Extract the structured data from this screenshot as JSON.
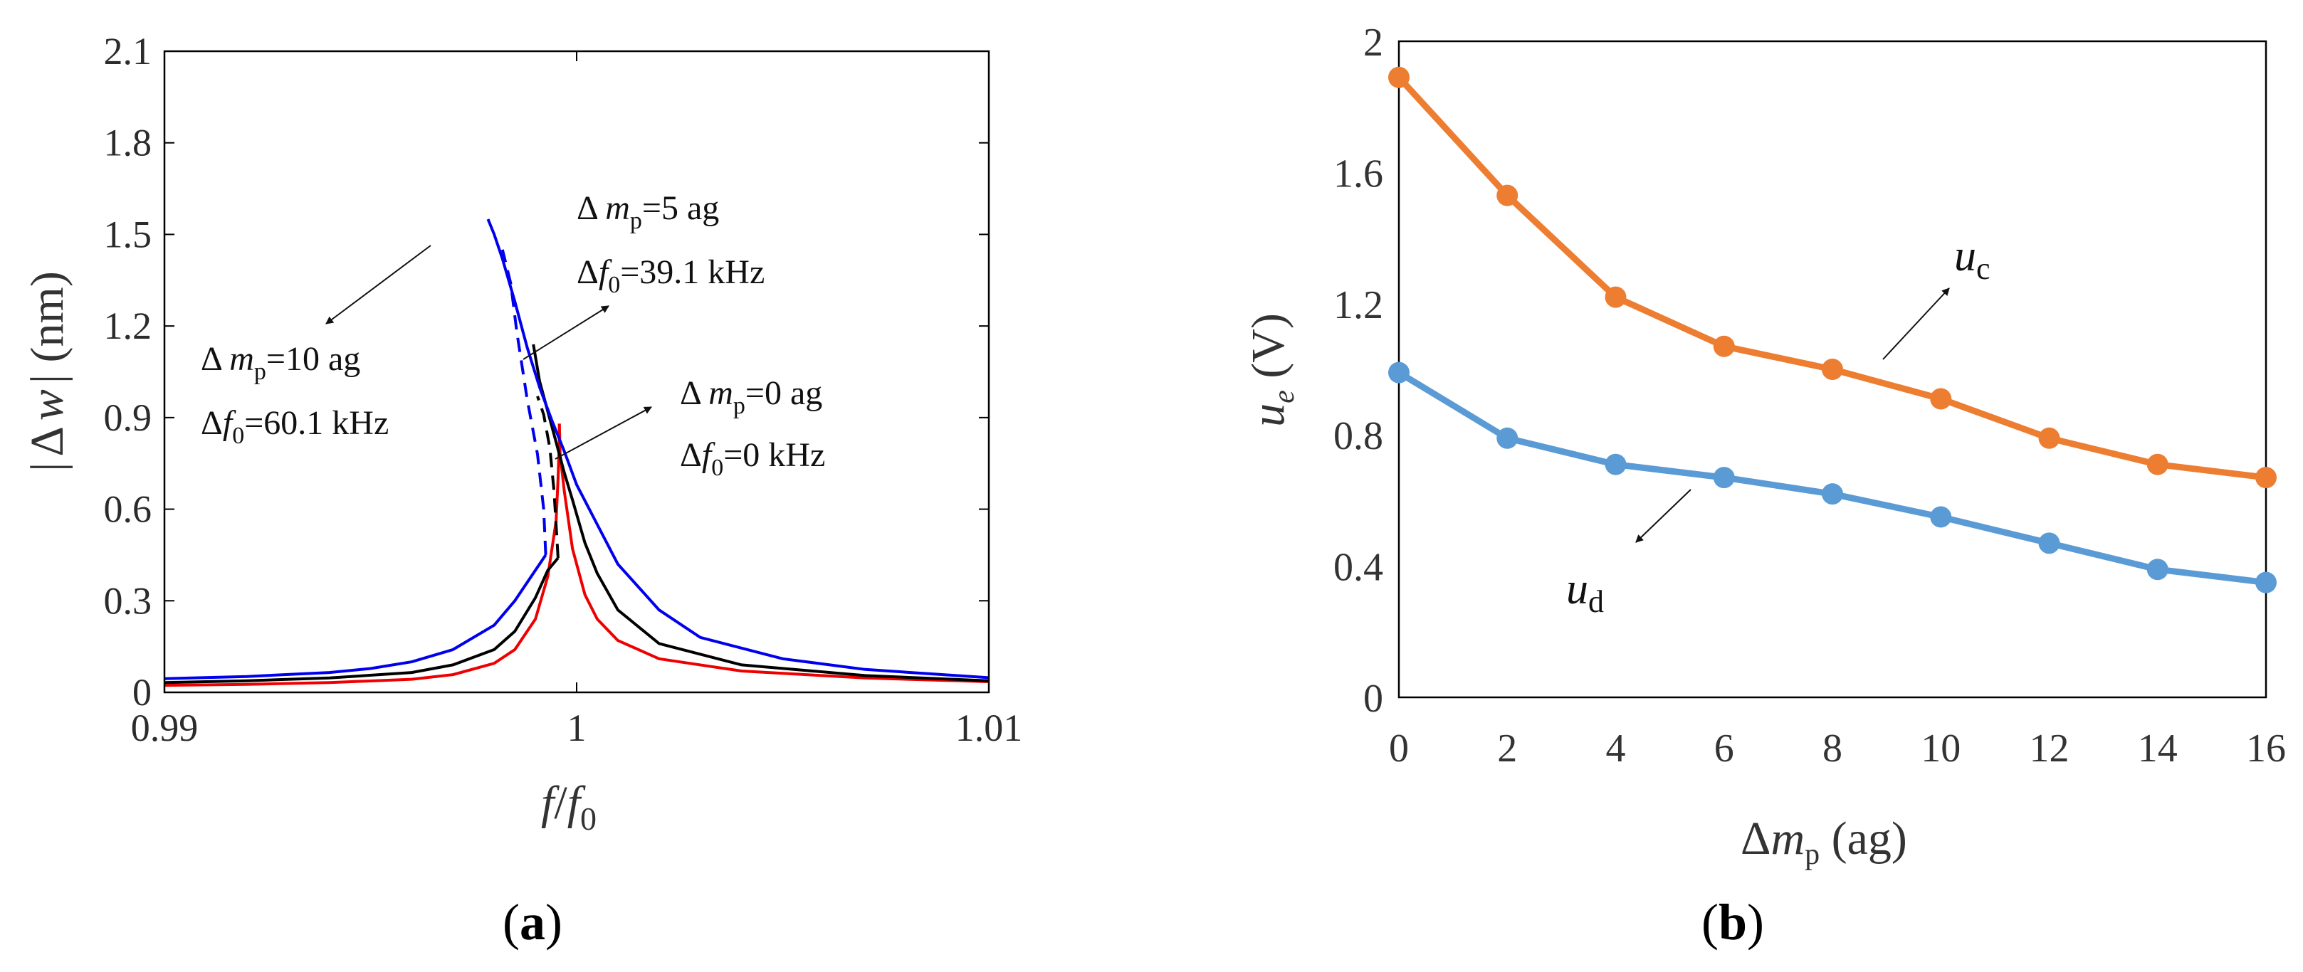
{
  "panel_labels": {
    "a_open": "(",
    "a_letter": "a",
    "a_close": ")",
    "b_open": "(",
    "b_letter": "b",
    "b_close": ")"
  },
  "chart_data": [
    {
      "type": "line",
      "panel": "a",
      "xlabel": "f/f0",
      "ylabel": "|Δw| (nm)",
      "xlim": [
        0.99,
        1.01
      ],
      "ylim": [
        0,
        2.1
      ],
      "x_ticks": [
        "0.99",
        "1",
        "1.01"
      ],
      "y_ticks": [
        "0",
        "0.3",
        "0.6",
        "0.9",
        "1.2",
        "1.5",
        "1.8",
        "2.1"
      ],
      "colors": {
        "blue": "#0000ee",
        "black": "#000000",
        "red": "#ee0000"
      },
      "series": [
        {
          "name": "Δmp=0 ag",
          "color": "red",
          "stable": [
            [
              0.99,
              0.023
            ],
            [
              0.992,
              0.026
            ],
            [
              0.994,
              0.032
            ],
            [
              0.996,
              0.043
            ],
            [
              0.997,
              0.058
            ],
            [
              0.998,
              0.095
            ],
            [
              0.9985,
              0.14
            ],
            [
              0.999,
              0.24
            ],
            [
              0.9993,
              0.38
            ],
            [
              0.9995,
              0.56
            ],
            [
              0.99955,
              0.7
            ],
            [
              0.99958,
              0.82
            ],
            [
              0.99958,
              0.88
            ]
          ],
          "unstable": [],
          "upper": [
            [
              0.99958,
              0.88
            ],
            [
              0.9996,
              0.78
            ],
            [
              0.9997,
              0.66
            ],
            [
              0.9999,
              0.47
            ],
            [
              1.0002,
              0.32
            ],
            [
              1.0005,
              0.24
            ],
            [
              1.001,
              0.17
            ],
            [
              1.002,
              0.11
            ],
            [
              1.004,
              0.07
            ],
            [
              1.007,
              0.047
            ],
            [
              1.01,
              0.035
            ]
          ]
        },
        {
          "name": "Δmp=5 ag",
          "color": "black",
          "lower": [
            [
              0.99,
              0.032
            ],
            [
              0.992,
              0.038
            ],
            [
              0.994,
              0.047
            ],
            [
              0.996,
              0.065
            ],
            [
              0.997,
              0.09
            ],
            [
              0.998,
              0.14
            ],
            [
              0.9985,
              0.2
            ],
            [
              0.999,
              0.31
            ],
            [
              0.9993,
              0.4
            ],
            [
              0.99955,
              0.44
            ]
          ],
          "unstable": [
            [
              0.99955,
              0.44
            ],
            [
              0.9995,
              0.55
            ],
            [
              0.99945,
              0.66
            ],
            [
              0.99935,
              0.8
            ],
            [
              0.9992,
              0.91
            ],
            [
              0.99905,
              0.97
            ]
          ],
          "upper": [
            [
              0.99895,
              1.14
            ],
            [
              0.9991,
              1.02
            ],
            [
              0.9993,
              0.92
            ],
            [
              0.9995,
              0.82
            ],
            [
              0.9997,
              0.72
            ],
            [
              0.9999,
              0.63
            ],
            [
              1.0002,
              0.49
            ],
            [
              1.0005,
              0.39
            ],
            [
              1.001,
              0.27
            ],
            [
              1.002,
              0.16
            ],
            [
              1.004,
              0.09
            ],
            [
              1.007,
              0.055
            ],
            [
              1.01,
              0.038
            ]
          ]
        },
        {
          "name": "Δmp=10 ag",
          "color": "blue",
          "lower": [
            [
              0.99,
              0.045
            ],
            [
              0.992,
              0.052
            ],
            [
              0.994,
              0.065
            ],
            [
              0.995,
              0.078
            ],
            [
              0.996,
              0.1
            ],
            [
              0.997,
              0.14
            ],
            [
              0.998,
              0.22
            ],
            [
              0.9985,
              0.3
            ],
            [
              0.999,
              0.4
            ],
            [
              0.99925,
              0.45
            ]
          ],
          "unstable": [
            [
              0.99925,
              0.45
            ],
            [
              0.9992,
              0.6
            ],
            [
              0.99905,
              0.78
            ],
            [
              0.9988,
              0.96
            ],
            [
              0.99855,
              1.18
            ],
            [
              0.9984,
              1.34
            ],
            [
              0.9982,
              1.45
            ]
          ],
          "upper": [
            [
              0.99785,
              1.55
            ],
            [
              0.998,
              1.5
            ],
            [
              0.9982,
              1.42
            ],
            [
              0.9985,
              1.28
            ],
            [
              0.9988,
              1.13
            ],
            [
              0.9991,
              1.0
            ],
            [
              0.9994,
              0.89
            ],
            [
              0.9997,
              0.79
            ],
            [
              1.0,
              0.68
            ],
            [
              1.0005,
              0.55
            ],
            [
              1.001,
              0.42
            ],
            [
              1.002,
              0.27
            ],
            [
              1.003,
              0.18
            ],
            [
              1.005,
              0.11
            ],
            [
              1.007,
              0.075
            ],
            [
              1.01,
              0.048
            ]
          ]
        }
      ],
      "annotations": [
        {
          "line1_prefix": "Δ ",
          "line1_var": "m",
          "line1_sub": "p",
          "line1_rest": "=10 ag",
          "line2_prefix": "Δ",
          "line2_var": "f",
          "line2_sub": "0",
          "line2_rest": "=60.1 kHz"
        },
        {
          "line1_prefix": "Δ ",
          "line1_var": "m",
          "line1_sub": "p",
          "line1_rest": "=5 ag",
          "line2_prefix": "Δ",
          "line2_var": "f",
          "line2_sub": "0",
          "line2_rest": "=39.1 kHz"
        },
        {
          "line1_prefix": "Δ ",
          "line1_var": "m",
          "line1_sub": "p",
          "line1_rest": "=0 ag",
          "line2_prefix": "Δ",
          "line2_var": "f",
          "line2_sub": "0",
          "line2_rest": "=0 kHz"
        }
      ],
      "xlabel_parts": {
        "f1": "f",
        "slash": "/",
        "f2": "f",
        "sub": "0"
      },
      "ylabel_parts": {
        "bar1": "|",
        "delta": "Δ",
        "w": "w",
        "bar2": "|",
        "unit": " (nm)"
      }
    },
    {
      "type": "line",
      "panel": "b",
      "xlabel": "Δmp (ag)",
      "ylabel": "ue (V)",
      "xlim": [
        0,
        16
      ],
      "ylim": [
        0,
        2
      ],
      "x_ticks": [
        "0",
        "2",
        "4",
        "6",
        "8",
        "10",
        "12",
        "14",
        "16"
      ],
      "y_ticks": [
        "0",
        "0.4",
        "0.8",
        "1.2",
        "1.6",
        "2"
      ],
      "categories": [
        0,
        2,
        4,
        6,
        8,
        10,
        12,
        14,
        16
      ],
      "series": [
        {
          "name": "uc",
          "color": "#ed7d31",
          "values": [
            1.89,
            1.53,
            1.22,
            1.07,
            1.0,
            0.91,
            0.79,
            0.71,
            0.67
          ]
        },
        {
          "name": "ud",
          "color": "#5b9bd5",
          "values": [
            0.99,
            0.79,
            0.71,
            0.67,
            0.62,
            0.55,
            0.47,
            0.39,
            0.35
          ]
        }
      ],
      "series_labels": [
        {
          "var": "u",
          "sub": "c"
        },
        {
          "var": "u",
          "sub": "d"
        }
      ],
      "xlabel_parts": {
        "delta": "Δ",
        "m": "m",
        "sub": "p",
        "unit": " (ag)"
      },
      "ylabel_parts": {
        "u": "u",
        "sub": "e",
        "unit": " (V)"
      }
    }
  ]
}
